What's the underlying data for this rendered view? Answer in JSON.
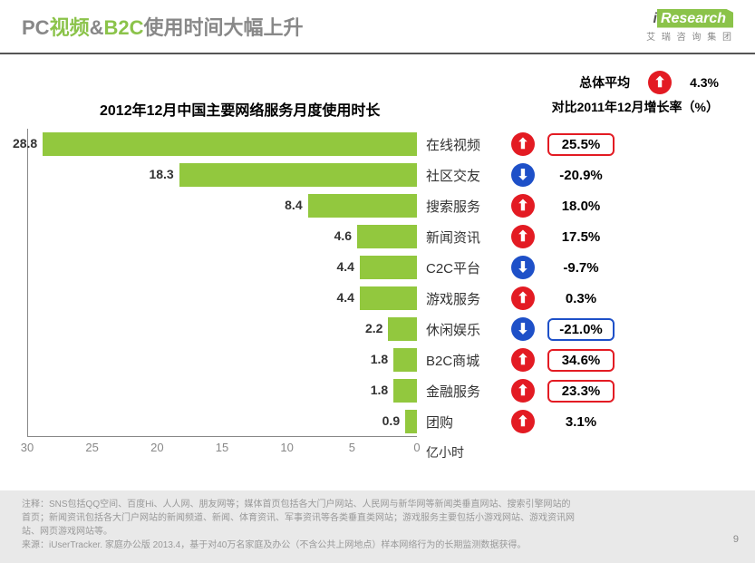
{
  "header": {
    "title_prefix": "PC",
    "title_highlight1": "视频",
    "title_mid": "&",
    "title_highlight2": "B2C",
    "title_suffix": "使用时间大幅上升",
    "logo_i": "i",
    "logo_research": "Research",
    "logo_sub": "艾 瑞 咨 询 集 团"
  },
  "overall": {
    "label": "总体平均",
    "direction": "up",
    "arrow_color": "#e31b23",
    "value": "4.3%"
  },
  "chart": {
    "title": "2012年12月中国主要网络服务月度使用时长",
    "growth_title": "对比2011年12月增长率（%）",
    "unit_label": "亿小时",
    "bar_color": "#92c83e",
    "axis_color": "#888888",
    "xmax": 30,
    "xticks": [
      "30",
      "25",
      "20",
      "15",
      "10",
      "5",
      "0"
    ],
    "rows": [
      {
        "value": 28.8,
        "label": "28.8",
        "category": "在线视频",
        "dir": "up",
        "arrow": "#e31b23",
        "growth": "25.5%",
        "box": "red"
      },
      {
        "value": 18.3,
        "label": "18.3",
        "category": "社区交友",
        "dir": "down",
        "arrow": "#1e50c8",
        "growth": "-20.9%",
        "box": "none"
      },
      {
        "value": 8.4,
        "label": "8.4",
        "category": "搜索服务",
        "dir": "up",
        "arrow": "#e31b23",
        "growth": "18.0%",
        "box": "none"
      },
      {
        "value": 4.6,
        "label": "4.6",
        "category": "新闻资讯",
        "dir": "up",
        "arrow": "#e31b23",
        "growth": "17.5%",
        "box": "none"
      },
      {
        "value": 4.4,
        "label": "4.4",
        "category": "C2C平台",
        "dir": "down",
        "arrow": "#1e50c8",
        "growth": "-9.7%",
        "box": "none"
      },
      {
        "value": 4.4,
        "label": "4.4",
        "category": "游戏服务",
        "dir": "up",
        "arrow": "#e31b23",
        "growth": "0.3%",
        "box": "none"
      },
      {
        "value": 2.2,
        "label": "2.2",
        "category": "休闲娱乐",
        "dir": "down",
        "arrow": "#1e50c8",
        "growth": "-21.0%",
        "box": "blue"
      },
      {
        "value": 1.8,
        "label": "1.8",
        "category": "B2C商城",
        "dir": "up",
        "arrow": "#e31b23",
        "growth": "34.6%",
        "box": "red"
      },
      {
        "value": 1.8,
        "label": "1.8",
        "category": "金融服务",
        "dir": "up",
        "arrow": "#e31b23",
        "growth": "23.3%",
        "box": "red"
      },
      {
        "value": 0.9,
        "label": "0.9",
        "category": "团购",
        "dir": "up",
        "arrow": "#e31b23",
        "growth": "3.1%",
        "box": "none"
      }
    ]
  },
  "footer": {
    "lines": [
      "注释：SNS包括QQ空间、百度Hi、人人网、朋友网等；媒体首页包括各大门户网站、人民网与新华网等新闻类垂直网站、搜索引擎网站的",
      "首页；新闻资讯包括各大门户网站的新闻频道、新闻、体育资讯、军事资讯等各类垂直类网站；游戏服务主要包括小游戏网站、游戏资讯网",
      "站、网页游戏网站等。",
      "来源：iUserTracker. 家庭办公版 2013.4，基于对40万名家庭及办公（不含公共上网地点）样本网络行为的长期监测数据获得。"
    ],
    "pagenum": "9"
  }
}
